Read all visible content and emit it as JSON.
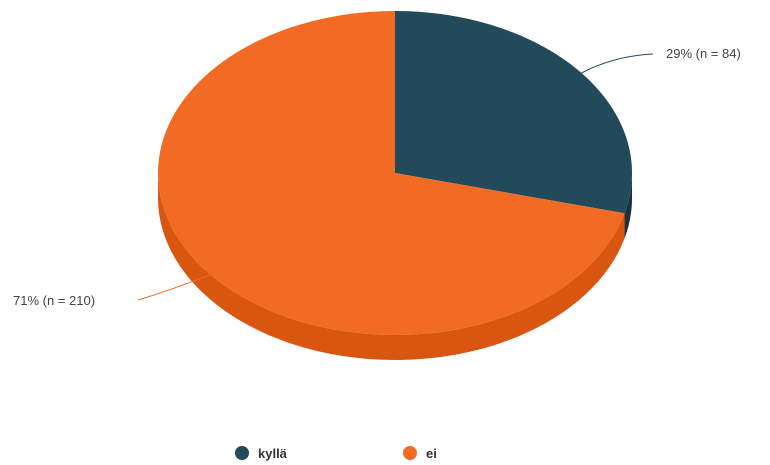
{
  "chart_data": {
    "type": "pie",
    "title": "",
    "categories": [
      "kyllä",
      "ei"
    ],
    "values": [
      29,
      71
    ],
    "counts": [
      84,
      210
    ],
    "colors": [
      "#234a5a",
      "#f26b24"
    ],
    "side_colors": [
      "#17323d",
      "#d8560f"
    ],
    "data_labels": [
      "29% (n = 84)",
      "71% (n = 210)"
    ],
    "legend": {
      "position": "bottom",
      "items": [
        {
          "label": "kyllä",
          "color": "#234a5a"
        },
        {
          "label": "ei",
          "color": "#f26b24"
        }
      ]
    }
  }
}
